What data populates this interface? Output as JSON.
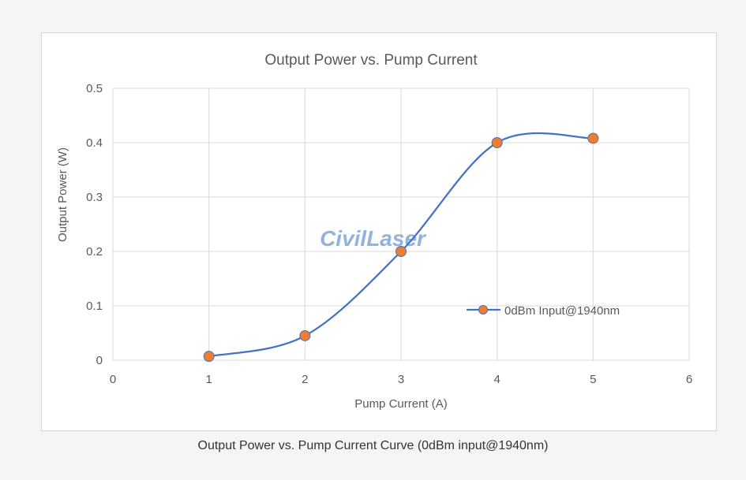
{
  "caption": "Output Power vs. Pump Current Curve (0dBm input@1940nm)",
  "watermark": "CivilLaser",
  "colors": {
    "line": "#4472c4",
    "marker_fill": "#ed7d31",
    "marker_stroke": "#4472c4",
    "grid": "#d9d9d9",
    "text": "#595959"
  },
  "chart_data": {
    "type": "scatter",
    "title": "Output Power vs. Pump Current",
    "xlabel": "Pump Current (A)",
    "ylabel": "Output Power (W)",
    "xlim": [
      0,
      6
    ],
    "ylim": [
      0,
      0.5
    ],
    "xticks": [
      "0",
      "1",
      "2",
      "3",
      "4",
      "5",
      "6"
    ],
    "yticks": [
      "0",
      "0.1",
      "0.2",
      "0.3",
      "0.4",
      "0.5"
    ],
    "grid": true,
    "smooth_line": true,
    "legend_position": "right",
    "series": [
      {
        "name": "0dBm Input@1940nm",
        "x": [
          1,
          2,
          3,
          4,
          5
        ],
        "y": [
          0.007,
          0.045,
          0.2,
          0.4,
          0.408
        ]
      }
    ]
  }
}
